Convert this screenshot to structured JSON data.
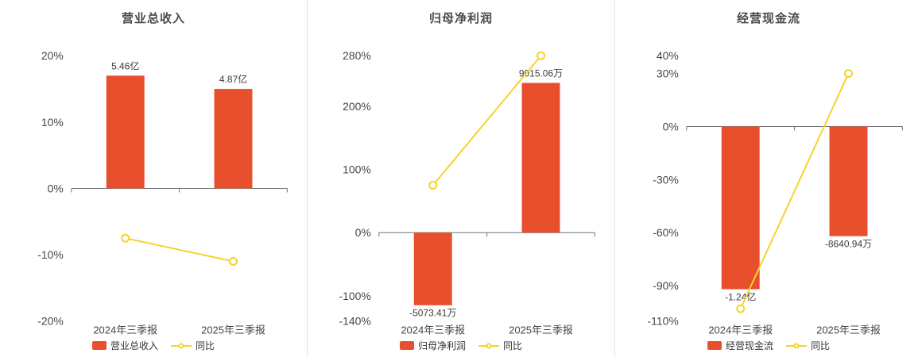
{
  "page": {
    "background": "#ffffff",
    "divider_color": "#e4e4e4"
  },
  "chart_data": [
    {
      "type": "bar",
      "subtype": "bar-line-combo",
      "title": "营业总收入",
      "categories": [
        "2024年三季报",
        "2025年三季报"
      ],
      "ylim": [
        -20,
        20
      ],
      "yticks": [
        -20,
        -10,
        0,
        10,
        20
      ],
      "ytick_suffix": "%",
      "grid": false,
      "legend_position": "bottom",
      "bar_series": {
        "name": "营业总收入",
        "value_labels": [
          "5.46亿",
          "4.87亿"
        ],
        "plotted_pct": [
          17,
          15
        ],
        "color": "#e8502d"
      },
      "line_series": {
        "name": "同比",
        "values_pct": [
          -7.5,
          -11
        ],
        "color": "#f5d328",
        "marker": "hollow-circle"
      }
    },
    {
      "type": "bar",
      "subtype": "bar-line-combo",
      "title": "归母净利润",
      "categories": [
        "2024年三季报",
        "2025年三季报"
      ],
      "ylim": [
        -140,
        280
      ],
      "yticks": [
        -140,
        -100,
        0,
        100,
        200,
        280
      ],
      "ytick_suffix": "%",
      "grid": false,
      "legend_position": "bottom",
      "bar_series": {
        "name": "归母净利润",
        "value_labels": [
          "-5073.41万",
          "9015.06万"
        ],
        "plotted_pct": [
          -115,
          237
        ],
        "color": "#e8502d"
      },
      "line_series": {
        "name": "同比",
        "values_pct": [
          75,
          280
        ],
        "color": "#f5d328",
        "marker": "hollow-circle"
      }
    },
    {
      "type": "bar",
      "subtype": "bar-line-combo",
      "title": "经营现金流",
      "categories": [
        "2024年三季报",
        "2025年三季报"
      ],
      "ylim": [
        -110,
        40
      ],
      "yticks": [
        -110,
        -90,
        -60,
        -30,
        0,
        30,
        40
      ],
      "ytick_suffix": "%",
      "grid": false,
      "legend_position": "bottom",
      "bar_series": {
        "name": "经营现金流",
        "value_labels": [
          "-1.24亿",
          "-8640.94万"
        ],
        "plotted_pct": [
          -92,
          -62
        ],
        "color": "#e8502d"
      },
      "line_series": {
        "name": "同比",
        "values_pct": [
          -103,
          30
        ],
        "color": "#f5d328",
        "marker": "hollow-circle"
      }
    }
  ]
}
